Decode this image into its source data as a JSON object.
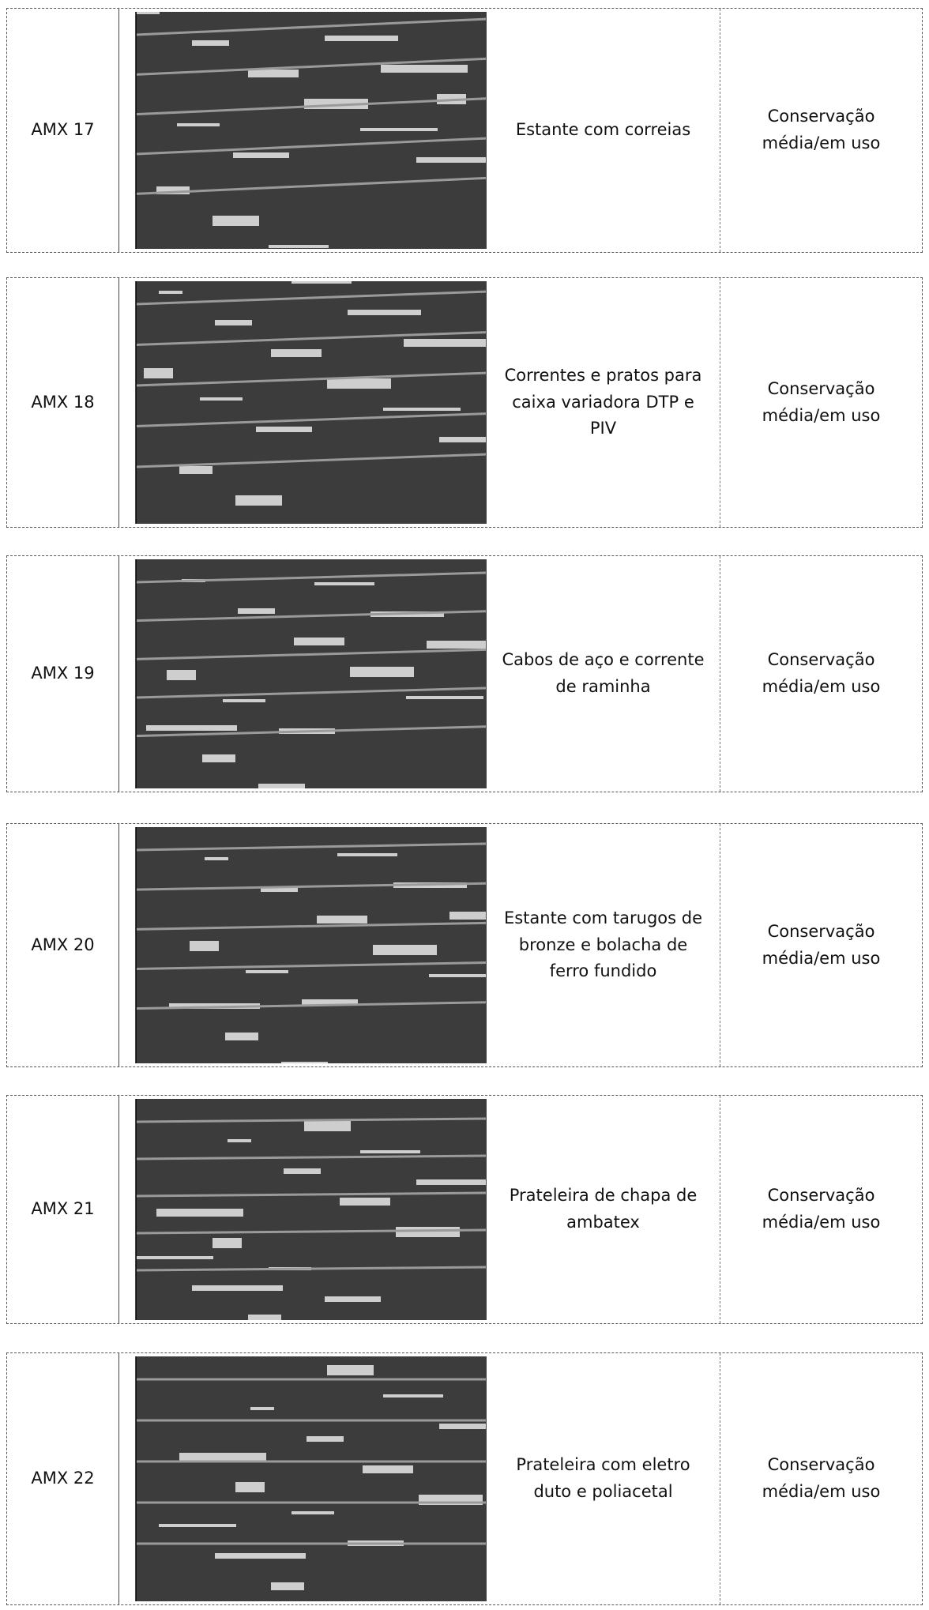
{
  "table": {
    "rows": [
      {
        "id": "AMX 17",
        "description": "Estante com correias",
        "condition": "Conservação média/em uso"
      },
      {
        "id": "AMX 18",
        "description": "Correntes e pratos para caixa variadora DTP e PIV",
        "condition": "Conservação média/em uso"
      },
      {
        "id": "AMX 19",
        "description": "Cabos de aço e corrente de raminha",
        "condition": "Conservação média/em uso"
      },
      {
        "id": "AMX 20",
        "description": "Estante com tarugos de bronze e bolacha de ferro fundido",
        "condition": "Conservação média/em uso"
      },
      {
        "id": "AMX 21",
        "description": "Prateleira de chapa de ambatex",
        "condition": "Conservação média/em uso"
      },
      {
        "id": "AMX 22",
        "description": "Prateleira com eletro duto e poliacetal",
        "condition": "Conservação média/em uso"
      }
    ]
  }
}
